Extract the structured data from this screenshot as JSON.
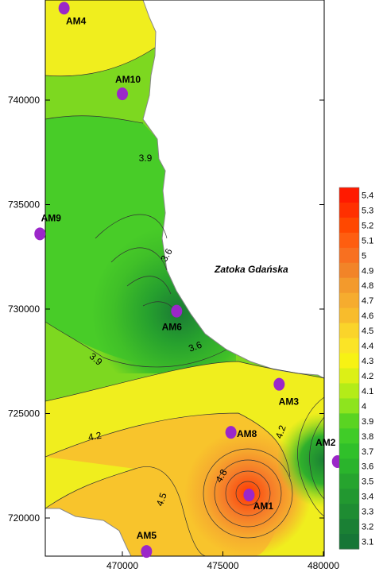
{
  "map": {
    "sea_label": "Zatoka Gdańska",
    "x_ticks": [
      "470000",
      "475000",
      "480000"
    ],
    "y_ticks": [
      "740000",
      "735000",
      "730000",
      "725000",
      "720000"
    ],
    "stations": [
      {
        "name": "AM4",
        "x": 467100,
        "y": 744400
      },
      {
        "name": "AM10",
        "x": 470000,
        "y": 740300
      },
      {
        "name": "AM9",
        "x": 465900,
        "y": 733600
      },
      {
        "name": "AM6",
        "x": 472700,
        "y": 729900
      },
      {
        "name": "AM3",
        "x": 477800,
        "y": 726400
      },
      {
        "name": "AM8",
        "x": 475400,
        "y": 724100
      },
      {
        "name": "AM2",
        "x": 480700,
        "y": 722700
      },
      {
        "name": "AM1",
        "x": 476300,
        "y": 721100
      },
      {
        "name": "AM5",
        "x": 471200,
        "y": 718400
      }
    ],
    "contour_labels": [
      "3.9",
      "3.6",
      "3.6",
      "3.9",
      "4.2",
      "4.2",
      "4.5",
      "4.8"
    ]
  },
  "legend": {
    "values": [
      "5.4",
      "5.3",
      "5.2",
      "5.1",
      "5",
      "4.9",
      "4.8",
      "4.7",
      "4.6",
      "4.5",
      "4.4",
      "4.3",
      "4.2",
      "4.1",
      "4",
      "3.9",
      "3.8",
      "3.7",
      "3.6",
      "3.5",
      "3.4",
      "3.3",
      "3.2",
      "3.1"
    ],
    "colors": [
      "#ff1a00",
      "#ff3000",
      "#ff4800",
      "#fe5e10",
      "#f87020",
      "#f28428",
      "#f39a2c",
      "#f6ac2e",
      "#f8bc2c",
      "#fad42a",
      "#fbe426",
      "#f7f214",
      "#dcf016",
      "#b4ec18",
      "#8ee41e",
      "#5ad422",
      "#40cc28",
      "#30c02a",
      "#2ab42c",
      "#26a42e",
      "#229830",
      "#1e8c32",
      "#1a8034",
      "#167636"
    ]
  },
  "colors": {
    "land_high": "#f0ee1e",
    "land_mid": "#7dd820",
    "land_low": "#1e8a32",
    "station_marker": "#9b27c9",
    "sea": "#ffffff"
  }
}
